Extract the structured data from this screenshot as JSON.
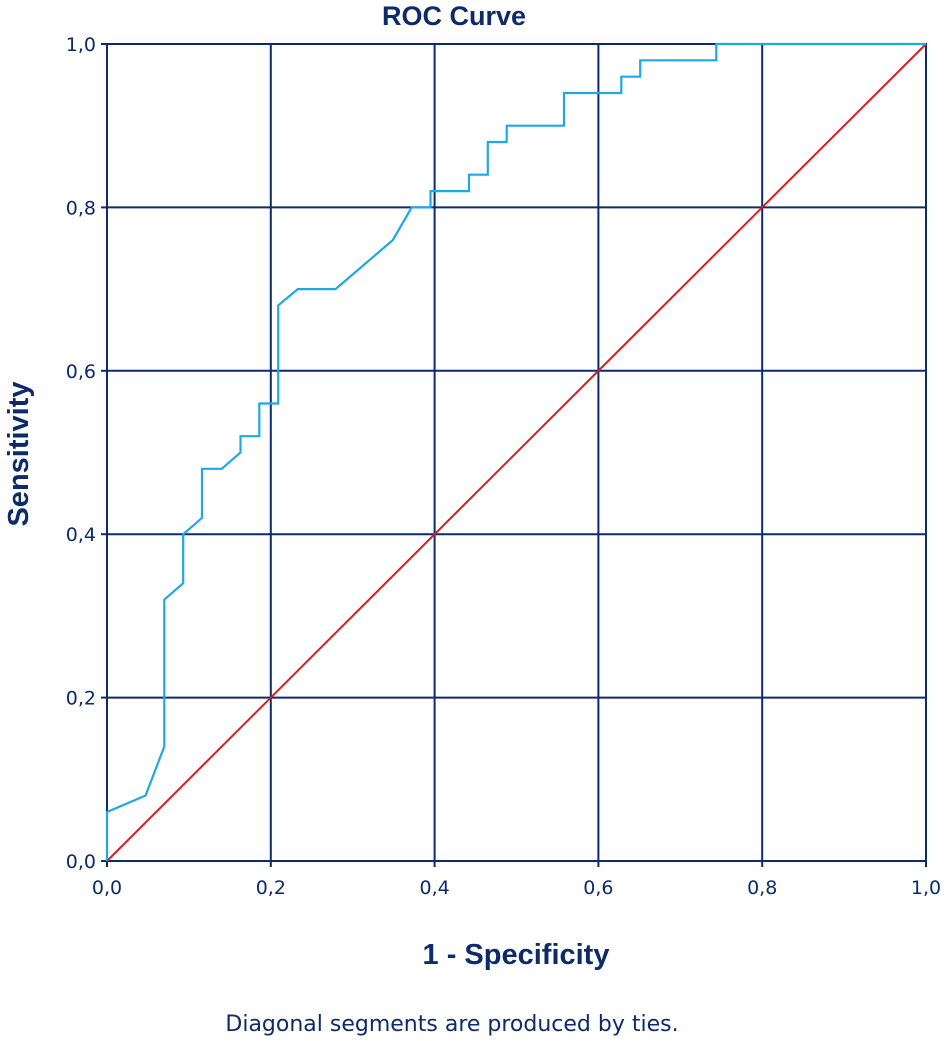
{
  "chart_data": {
    "type": "line",
    "title": "ROC Curve",
    "xlabel": "1 - Specificity",
    "ylabel": "Sensitivity",
    "footnote": "Diagonal segments are produced by ties.",
    "xlim": [
      0,
      1
    ],
    "ylim": [
      0,
      1
    ],
    "grid": true,
    "x_ticks": [
      "0,0",
      "0,2",
      "0,4",
      "0,6",
      "0,8",
      "1,0"
    ],
    "y_ticks": [
      "0,0",
      "0,2",
      "0,4",
      "0,6",
      "0,8",
      "1,0"
    ],
    "colors": {
      "frame": "#0d2a6b",
      "curve": "#1fa8e6",
      "reference": "#d21f26"
    },
    "series": [
      {
        "x": [
          0.0,
          0.0,
          0.047,
          0.07,
          0.07,
          0.07,
          0.093,
          0.093,
          0.116,
          0.116,
          0.14,
          0.163,
          0.163,
          0.186,
          0.186,
          0.209,
          0.209,
          0.209,
          0.233,
          0.279,
          0.349,
          0.372,
          0.395,
          0.395,
          0.442,
          0.442,
          0.465,
          0.465,
          0.488,
          0.488,
          0.558,
          0.558,
          0.628,
          0.628,
          0.651,
          0.651,
          0.744,
          0.744,
          1.0
        ],
        "y": [
          0.0,
          0.06,
          0.08,
          0.14,
          0.32,
          0.32,
          0.34,
          0.4,
          0.42,
          0.48,
          0.48,
          0.5,
          0.52,
          0.52,
          0.56,
          0.56,
          0.68,
          0.68,
          0.7,
          0.7,
          0.76,
          0.8,
          0.8,
          0.82,
          0.82,
          0.84,
          0.84,
          0.88,
          0.88,
          0.9,
          0.9,
          0.94,
          0.94,
          0.96,
          0.96,
          0.98,
          0.98,
          1.0,
          1.0
        ]
      },
      {
        "x": [
          0,
          1
        ],
        "y": [
          0,
          1
        ]
      }
    ]
  }
}
